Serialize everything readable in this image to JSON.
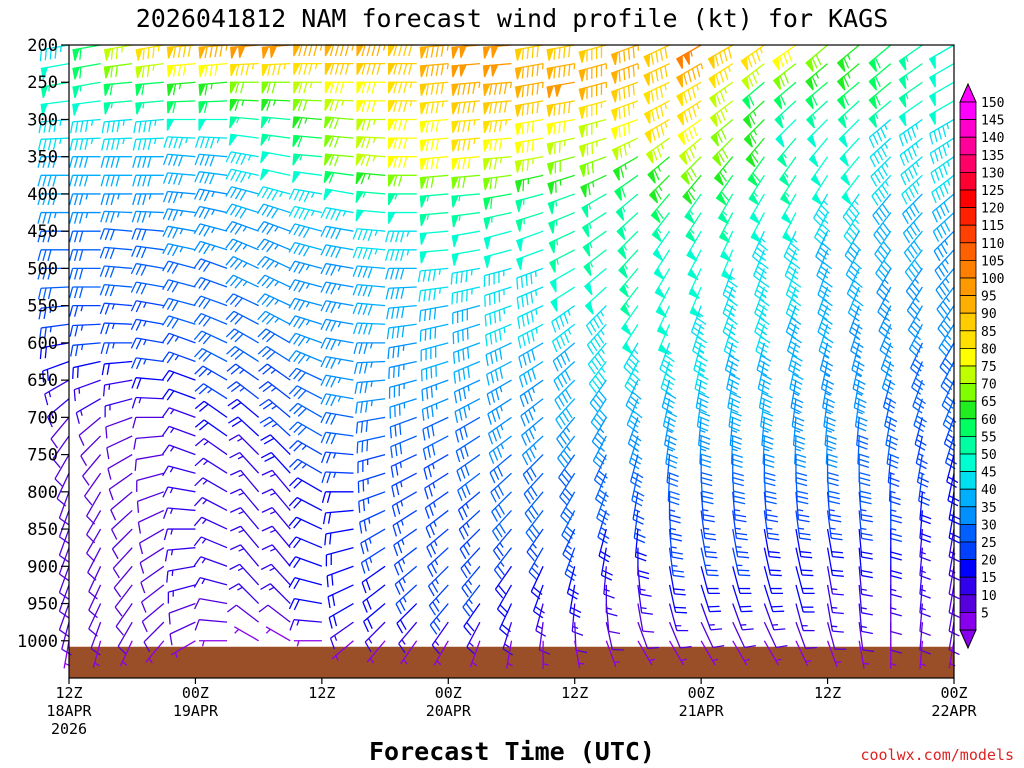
{
  "chart_data": {
    "type": "wind_barb_profile",
    "title": "2026041812 NAM forecast wind profile (kt) for KAGS",
    "xlabel": "Forecast Time (UTC)",
    "credit": "coolwx.com/models",
    "pressure_levels_hpa": [
      200,
      225,
      250,
      275,
      300,
      325,
      350,
      375,
      400,
      425,
      450,
      475,
      500,
      525,
      550,
      575,
      600,
      625,
      650,
      675,
      700,
      725,
      750,
      775,
      800,
      825,
      850,
      875,
      900,
      925,
      950,
      975,
      1000
    ],
    "y_ticks": [
      "200",
      "250",
      "300",
      "350",
      "400",
      "450",
      "500",
      "550",
      "600",
      "650",
      "700",
      "750",
      "800",
      "850",
      "900",
      "950",
      "1000"
    ],
    "x_hours": [
      0,
      3,
      6,
      9,
      12,
      15,
      18,
      21,
      24,
      27,
      30,
      33,
      36,
      39,
      42,
      45,
      48,
      51,
      54,
      57,
      60,
      63,
      66,
      69,
      72,
      75,
      78,
      81,
      84
    ],
    "x_ticks": [
      {
        "hour": 0,
        "line1": "12Z",
        "line2": "18APR",
        "line3": "2026"
      },
      {
        "hour": 12,
        "line1": "00Z",
        "line2": "19APR",
        "line3": ""
      },
      {
        "hour": 24,
        "line1": "12Z",
        "line2": "",
        "line3": ""
      },
      {
        "hour": 36,
        "line1": "00Z",
        "line2": "20APR",
        "line3": ""
      },
      {
        "hour": 48,
        "line1": "12Z",
        "line2": "",
        "line3": ""
      },
      {
        "hour": 60,
        "line1": "00Z",
        "line2": "21APR",
        "line3": ""
      },
      {
        "hour": 72,
        "line1": "12Z",
        "line2": "",
        "line3": ""
      },
      {
        "hour": 84,
        "line1": "00Z",
        "line2": "22APR",
        "line3": ""
      }
    ],
    "colorbar": {
      "labels": [
        "150",
        "145",
        "140",
        "135",
        "130",
        "125",
        "120",
        "115",
        "110",
        "105",
        "100",
        "95",
        "90",
        "85",
        "80",
        "75",
        "70",
        "65",
        "60",
        "55",
        "50",
        "45",
        "40",
        "35",
        "30",
        "25",
        "20",
        "15",
        "10",
        "5"
      ],
      "colors": [
        "#ff00ff",
        "#ff00cc",
        "#ff0099",
        "#ff0066",
        "#ff0033",
        "#ff0000",
        "#ff2000",
        "#ff4000",
        "#ff6000",
        "#ff8000",
        "#ff9900",
        "#ffb000",
        "#ffcc00",
        "#ffe000",
        "#ffff00",
        "#c0ff00",
        "#80ff00",
        "#20ee20",
        "#00ff60",
        "#00ffa0",
        "#00ffd0",
        "#00e0f0",
        "#00b0ff",
        "#0090ff",
        "#0060ff",
        "#0040ff",
        "#0000ff",
        "#3300ee",
        "#5500dd",
        "#8800ee"
      ]
    },
    "wind_speed_kt": {
      "200": [
        45,
        60,
        75,
        85,
        90,
        95,
        100,
        100,
        95,
        95,
        95,
        90,
        95,
        100,
        100,
        90,
        90,
        90,
        95,
        90,
        105,
        90,
        85,
        80,
        70,
        65,
        60,
        55,
        50
      ],
      "250": [
        55,
        55,
        60,
        60,
        65,
        65,
        70,
        70,
        75,
        80,
        80,
        85,
        90,
        95,
        95,
        95,
        100,
        95,
        90,
        85,
        85,
        75,
        60,
        60,
        60,
        60,
        60,
        55,
        50
      ],
      "300": [
        45,
        45,
        45,
        45,
        50,
        50,
        55,
        55,
        65,
        70,
        75,
        80,
        80,
        85,
        85,
        80,
        80,
        75,
        80,
        85,
        80,
        70,
        65,
        50,
        50,
        50,
        45,
        45,
        45
      ],
      "350": [
        40,
        40,
        40,
        40,
        40,
        40,
        45,
        50,
        55,
        70,
        75,
        80,
        80,
        80,
        75,
        75,
        70,
        70,
        65,
        65,
        70,
        65,
        60,
        55,
        50,
        50,
        45,
        45,
        45
      ],
      "400": [
        40,
        35,
        35,
        35,
        35,
        35,
        40,
        45,
        45,
        50,
        55,
        55,
        55,
        55,
        60,
        55,
        55,
        55,
        55,
        60,
        55,
        55,
        50,
        50,
        45,
        45,
        40,
        40,
        40
      ],
      "450": [
        30,
        30,
        30,
        30,
        35,
        35,
        35,
        35,
        40,
        40,
        45,
        45,
        50,
        50,
        50,
        50,
        55,
        55,
        55,
        50,
        50,
        50,
        45,
        45,
        40,
        40,
        40,
        40,
        35
      ],
      "500": [
        30,
        30,
        30,
        30,
        30,
        30,
        35,
        35,
        35,
        35,
        40,
        40,
        45,
        45,
        45,
        45,
        50,
        50,
        55,
        50,
        50,
        45,
        45,
        45,
        40,
        40,
        35,
        35,
        35
      ],
      "550": [
        25,
        25,
        25,
        25,
        30,
        30,
        30,
        35,
        35,
        35,
        40,
        40,
        40,
        40,
        45,
        45,
        45,
        45,
        50,
        50,
        45,
        45,
        45,
        40,
        40,
        35,
        35,
        35,
        35
      ],
      "600": [
        20,
        25,
        25,
        25,
        25,
        30,
        30,
        30,
        35,
        35,
        35,
        35,
        40,
        40,
        40,
        40,
        40,
        45,
        45,
        45,
        45,
        40,
        40,
        40,
        35,
        35,
        35,
        30,
        30
      ],
      "650": [
        15,
        15,
        15,
        20,
        20,
        25,
        25,
        25,
        30,
        35,
        35,
        35,
        35,
        35,
        35,
        35,
        40,
        40,
        40,
        40,
        40,
        40,
        40,
        35,
        35,
        35,
        30,
        30,
        30
      ],
      "700": [
        10,
        10,
        10,
        10,
        15,
        20,
        20,
        25,
        30,
        30,
        30,
        30,
        30,
        30,
        35,
        35,
        35,
        35,
        35,
        35,
        35,
        35,
        35,
        35,
        35,
        30,
        30,
        25,
        25
      ],
      "750": [
        10,
        10,
        10,
        10,
        15,
        15,
        15,
        20,
        25,
        25,
        25,
        25,
        25,
        30,
        30,
        30,
        30,
        30,
        30,
        30,
        30,
        30,
        30,
        30,
        30,
        30,
        25,
        25,
        20
      ],
      "800": [
        10,
        10,
        10,
        10,
        15,
        15,
        15,
        15,
        20,
        20,
        25,
        25,
        25,
        25,
        30,
        30,
        30,
        30,
        25,
        25,
        25,
        25,
        25,
        25,
        25,
        25,
        25,
        20,
        20
      ],
      "850": [
        10,
        10,
        10,
        10,
        15,
        15,
        15,
        15,
        20,
        20,
        25,
        25,
        25,
        25,
        25,
        25,
        25,
        20,
        20,
        25,
        25,
        25,
        20,
        20,
        20,
        20,
        20,
        15,
        15
      ],
      "900": [
        10,
        10,
        10,
        10,
        15,
        15,
        15,
        15,
        20,
        20,
        20,
        25,
        25,
        25,
        20,
        20,
        20,
        15,
        15,
        20,
        20,
        20,
        20,
        20,
        15,
        15,
        15,
        15,
        10
      ],
      "950": [
        10,
        10,
        10,
        10,
        10,
        10,
        15,
        15,
        20,
        20,
        20,
        20,
        25,
        20,
        20,
        15,
        15,
        10,
        10,
        15,
        15,
        15,
        15,
        15,
        15,
        15,
        10,
        10,
        10
      ],
      "1000": [
        5,
        5,
        5,
        5,
        5,
        5,
        5,
        5,
        5,
        5,
        5,
        5,
        5,
        5,
        5,
        5,
        5,
        5,
        5,
        5,
        5,
        5,
        5,
        5,
        5,
        5,
        5,
        5,
        5
      ]
    },
    "wind_direction_deg": {
      "200": [
        260,
        260,
        260,
        260,
        265,
        265,
        265,
        265,
        270,
        270,
        270,
        270,
        265,
        265,
        265,
        260,
        260,
        255,
        250,
        245,
        240,
        240,
        235,
        235,
        230,
        230,
        230,
        235,
        240
      ],
      "250": [
        260,
        260,
        265,
        265,
        265,
        265,
        270,
        270,
        270,
        270,
        270,
        270,
        265,
        265,
        265,
        260,
        260,
        255,
        250,
        245,
        240,
        235,
        230,
        230,
        230,
        230,
        230,
        235,
        240
      ],
      "300": [
        265,
        265,
        265,
        265,
        270,
        270,
        275,
        275,
        275,
        275,
        270,
        270,
        265,
        265,
        265,
        260,
        260,
        255,
        250,
        240,
        235,
        230,
        225,
        225,
        225,
        225,
        230,
        235,
        240
      ],
      "350": [
        270,
        270,
        270,
        270,
        275,
        275,
        280,
        280,
        275,
        275,
        275,
        270,
        265,
        265,
        265,
        260,
        255,
        250,
        240,
        230,
        225,
        220,
        215,
        215,
        215,
        220,
        225,
        230,
        235
      ],
      "400": [
        270,
        270,
        270,
        270,
        275,
        280,
        285,
        285,
        280,
        280,
        275,
        270,
        265,
        265,
        260,
        255,
        250,
        240,
        230,
        220,
        215,
        210,
        210,
        210,
        210,
        215,
        220,
        225,
        230
      ],
      "450": [
        270,
        270,
        275,
        275,
        280,
        285,
        290,
        290,
        285,
        280,
        275,
        270,
        265,
        260,
        255,
        250,
        245,
        235,
        225,
        215,
        210,
        205,
        205,
        205,
        205,
        210,
        215,
        220,
        225
      ],
      "500": [
        270,
        270,
        275,
        280,
        285,
        290,
        295,
        295,
        285,
        280,
        275,
        270,
        265,
        260,
        255,
        250,
        240,
        230,
        220,
        210,
        205,
        200,
        200,
        200,
        200,
        205,
        210,
        215,
        220
      ],
      "550": [
        265,
        270,
        275,
        280,
        285,
        290,
        295,
        295,
        285,
        280,
        275,
        265,
        260,
        255,
        250,
        245,
        235,
        225,
        215,
        205,
        200,
        200,
        200,
        200,
        200,
        200,
        205,
        210,
        215
      ],
      "600": [
        260,
        265,
        270,
        280,
        290,
        295,
        300,
        300,
        290,
        280,
        270,
        260,
        255,
        250,
        245,
        240,
        230,
        220,
        210,
        200,
        195,
        195,
        195,
        195,
        195,
        195,
        200,
        205,
        210
      ],
      "650": [
        240,
        250,
        260,
        275,
        290,
        300,
        305,
        305,
        295,
        280,
        265,
        255,
        250,
        245,
        240,
        235,
        225,
        215,
        205,
        195,
        190,
        190,
        190,
        190,
        190,
        190,
        195,
        200,
        205
      ],
      "700": [
        220,
        230,
        250,
        270,
        290,
        305,
        310,
        310,
        300,
        280,
        260,
        250,
        245,
        240,
        235,
        230,
        220,
        210,
        200,
        190,
        185,
        185,
        185,
        185,
        185,
        185,
        190,
        195,
        200
      ],
      "750": [
        210,
        220,
        240,
        260,
        290,
        305,
        315,
        315,
        300,
        275,
        255,
        245,
        240,
        235,
        230,
        225,
        215,
        205,
        195,
        185,
        180,
        180,
        180,
        180,
        180,
        180,
        185,
        190,
        195
      ],
      "800": [
        200,
        210,
        230,
        250,
        280,
        300,
        320,
        320,
        300,
        270,
        250,
        240,
        235,
        230,
        225,
        220,
        210,
        200,
        190,
        180,
        175,
        175,
        175,
        175,
        175,
        175,
        180,
        185,
        190
      ],
      "850": [
        200,
        210,
        225,
        240,
        270,
        295,
        320,
        320,
        295,
        260,
        240,
        235,
        230,
        225,
        220,
        215,
        205,
        195,
        185,
        175,
        170,
        170,
        170,
        170,
        170,
        175,
        180,
        185,
        190
      ],
      "900": [
        200,
        205,
        220,
        235,
        260,
        290,
        320,
        320,
        290,
        250,
        235,
        230,
        225,
        220,
        215,
        205,
        195,
        185,
        175,
        170,
        165,
        165,
        165,
        165,
        170,
        175,
        180,
        185,
        190
      ],
      "950": [
        200,
        205,
        215,
        230,
        250,
        280,
        315,
        315,
        280,
        240,
        230,
        225,
        220,
        215,
        205,
        195,
        185,
        175,
        170,
        165,
        160,
        160,
        160,
        165,
        170,
        175,
        180,
        185,
        190
      ],
      "1000": [
        190,
        195,
        205,
        220,
        240,
        270,
        300,
        300,
        270,
        230,
        220,
        215,
        210,
        200,
        190,
        180,
        170,
        160,
        150,
        150,
        150,
        150,
        150,
        155,
        160,
        170,
        180,
        185,
        190
      ]
    },
    "surface_pressure_hpa": [
      1008,
      1008,
      1008,
      1008,
      1008,
      1008,
      1008,
      1008,
      1008,
      1008,
      1008,
      1008,
      1008,
      1008,
      1008,
      1008,
      1008,
      1008,
      1008,
      1008,
      1008,
      1008,
      1008,
      1008,
      1008,
      1008,
      1008,
      1008,
      1008
    ]
  }
}
